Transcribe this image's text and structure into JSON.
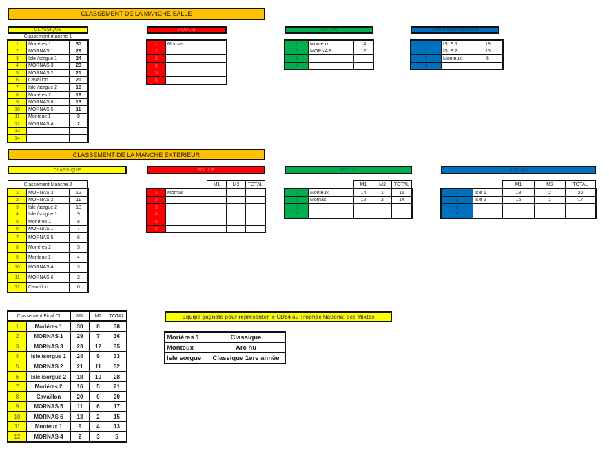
{
  "colors": {
    "orange": "#ffc000",
    "yellow": "#ffff00",
    "red": "#ff0000",
    "green": "#00b050",
    "blue": "#0070c0"
  },
  "manche_salle": {
    "title": "CLASSEMENT DE LA MANCHE SALLE",
    "classique": {
      "header": "CLASSIQUE",
      "subtitle": "Classement manche 1",
      "rows": [
        {
          "rank": "1",
          "name": "Moriéres 1",
          "score": "30"
        },
        {
          "rank": "2",
          "name": "MORNAS 1",
          "score": "29"
        },
        {
          "rank": "3",
          "name": "Isle /sorgue 1",
          "score": "24"
        },
        {
          "rank": "4",
          "name": "MORNAS 3",
          "score": "23"
        },
        {
          "rank": "5",
          "name": "MORNAS 2",
          "score": "21"
        },
        {
          "rank": "6",
          "name": "Cavaillon",
          "score": "20"
        },
        {
          "rank": "7",
          "name": "Isle /sorgue 2",
          "score": "18"
        },
        {
          "rank": "8",
          "name": "Moriéres 2",
          "score": "16"
        },
        {
          "rank": "9",
          "name": "MORNAS 6",
          "score": "13"
        },
        {
          "rank": "10",
          "name": "MORNAS 5",
          "score": "11"
        },
        {
          "rank": "11",
          "name": "Monteux 1",
          "score": "9"
        },
        {
          "rank": "12",
          "name": "MORNAS 4",
          "score": "2"
        },
        {
          "rank": "13",
          "name": "",
          "score": ""
        },
        {
          "rank": "14",
          "name": "",
          "score": ""
        }
      ]
    },
    "poulie": {
      "header": "POULIE",
      "rows": [
        {
          "rank": "1",
          "name": "Mornas",
          "score": ""
        },
        {
          "rank": "2",
          "name": "",
          "score": ""
        },
        {
          "rank": "3",
          "name": "",
          "score": ""
        },
        {
          "rank": "4",
          "name": "",
          "score": ""
        },
        {
          "rank": "5",
          "name": "",
          "score": ""
        },
        {
          "rank": "6",
          "name": "",
          "score": ""
        }
      ]
    },
    "arc_nu": {
      "header": "ARC NU",
      "rows": [
        {
          "rank": "1",
          "name": "Monteux",
          "score": "14"
        },
        {
          "rank": "2",
          "name": "MORNAS",
          "score": "12"
        },
        {
          "rank": "3",
          "name": "",
          "score": ""
        },
        {
          "rank": "4",
          "name": "",
          "score": ""
        }
      ]
    },
    "premiere_annee": {
      "header": "1ére Année Classique",
      "rows": [
        {
          "rank": "1",
          "name": "ISLE 1",
          "score": "18"
        },
        {
          "rank": "2",
          "name": "ISLE 2",
          "score": "16"
        },
        {
          "rank": "3",
          "name": "Monteux",
          "score": "6"
        },
        {
          "rank": "4",
          "name": "",
          "score": ""
        }
      ]
    }
  },
  "manche_exterieur": {
    "title": "CLASSEMENT DE LA MANCHE EXTERIEUR",
    "columns": [
      "M1",
      "M2",
      "TOTAL"
    ],
    "classique": {
      "header": "CLASSIQUE",
      "subtitle": "Classement Manche 2",
      "rows": [
        {
          "rank": "1",
          "name": "MORNAS 3",
          "score": "12"
        },
        {
          "rank": "2",
          "name": "MORNAS 2",
          "score": "11"
        },
        {
          "rank": "3",
          "name": "Isle /sorgue 2",
          "score": "10"
        },
        {
          "rank": "4",
          "name": "Isle /sorgue 1",
          "score": "9"
        },
        {
          "rank": "5",
          "name": "Moriéres 1",
          "score": "8"
        },
        {
          "rank": "6",
          "name": "MORNAS 1",
          "score": "7"
        },
        {
          "rank": "7",
          "name": "MORNAS 5",
          "score": "6"
        },
        {
          "rank": "8",
          "name": "Moriéres 2",
          "score": "5"
        },
        {
          "rank": "9",
          "name": "Monteux 1",
          "score": "4"
        },
        {
          "rank": "10",
          "name": "MORNAS 4",
          "score": "3"
        },
        {
          "rank": "11",
          "name": "MORNAS 6",
          "score": "2"
        },
        {
          "rank": "12",
          "name": "Cavaillon",
          "score": "0"
        }
      ]
    },
    "poulie": {
      "header": "POULIE",
      "rows": [
        {
          "rank": "1",
          "name": "Mornas",
          "m1": "",
          "m2": "",
          "total": ""
        },
        {
          "rank": "2",
          "name": "",
          "m1": "",
          "m2": "",
          "total": ""
        },
        {
          "rank": "3",
          "name": "",
          "m1": "",
          "m2": "",
          "total": ""
        },
        {
          "rank": "4",
          "name": "",
          "m1": "",
          "m2": "",
          "total": ""
        },
        {
          "rank": "5",
          "name": "",
          "m1": "",
          "m2": "",
          "total": ""
        },
        {
          "rank": "6",
          "name": "",
          "m1": "",
          "m2": "",
          "total": ""
        }
      ]
    },
    "arc_nu": {
      "header": "ARC NU",
      "rows": [
        {
          "rank": "1",
          "name": "Monteux",
          "m1": "14",
          "m2": "1",
          "total": "15"
        },
        {
          "rank": "2",
          "name": "Mornas",
          "m1": "12",
          "m2": "2",
          "total": "14"
        },
        {
          "rank": "3",
          "name": "",
          "m1": "",
          "m2": "",
          "total": ""
        },
        {
          "rank": "4",
          "name": "",
          "m1": "",
          "m2": "",
          "total": ""
        }
      ]
    },
    "arc_nu_2": {
      "header": "ARC NU",
      "rows": [
        {
          "rank": "1",
          "name": "Isle 1",
          "m1": "18",
          "m2": "2",
          "total": "20"
        },
        {
          "rank": "2",
          "name": "Isle 2",
          "m1": "16",
          "m2": "1",
          "total": "17"
        },
        {
          "rank": "3",
          "name": "",
          "m1": "",
          "m2": "",
          "total": ""
        },
        {
          "rank": "4",
          "name": "",
          "m1": "",
          "m2": "",
          "total": ""
        }
      ]
    }
  },
  "final": {
    "header": "Classement Final   CL",
    "columns": [
      "M1",
      "M2",
      "TOTAL"
    ],
    "rows": [
      {
        "rank": "1",
        "name": "Moriéres 1",
        "m1": "30",
        "m2": "8",
        "total": "38"
      },
      {
        "rank": "2",
        "name": "MORNAS 1",
        "m1": "29",
        "m2": "7",
        "total": "36"
      },
      {
        "rank": "3",
        "name": "MORNAS 3",
        "m1": "23",
        "m2": "12",
        "total": "35"
      },
      {
        "rank": "4",
        "name": "Isle /sorgue 1",
        "m1": "24",
        "m2": "9",
        "total": "33"
      },
      {
        "rank": "5",
        "name": "MORNAS 2",
        "m1": "21",
        "m2": "11",
        "total": "32"
      },
      {
        "rank": "6",
        "name": "Isle /sorgue 2",
        "m1": "18",
        "m2": "10",
        "total": "28"
      },
      {
        "rank": "7",
        "name": "Moriéres 2",
        "m1": "16",
        "m2": "5",
        "total": "21"
      },
      {
        "rank": "8",
        "name": "Cavaillon",
        "m1": "20",
        "m2": "0",
        "total": "20"
      },
      {
        "rank": "9",
        "name": "MORNAS 5",
        "m1": "11",
        "m2": "6",
        "total": "17"
      },
      {
        "rank": "10",
        "name": "MORNAS 6",
        "m1": "13",
        "m2": "2",
        "total": "15"
      },
      {
        "rank": "11",
        "name": "Monteux 1",
        "m1": "9",
        "m2": "4",
        "total": "13"
      },
      {
        "rank": "12",
        "name": "MORNAS 4",
        "m1": "2",
        "m2": "3",
        "total": "5"
      }
    ]
  },
  "winners": {
    "banner": "Equipe gagnate pour représenter le CD84 au Trophée National des Mixtes",
    "rows": [
      {
        "team": "Moriéres 1",
        "category": "Classique"
      },
      {
        "team": "Monteux",
        "category": "Arc nu"
      },
      {
        "team": "Isle sorgue",
        "category": "Classique 1ere année"
      }
    ]
  }
}
